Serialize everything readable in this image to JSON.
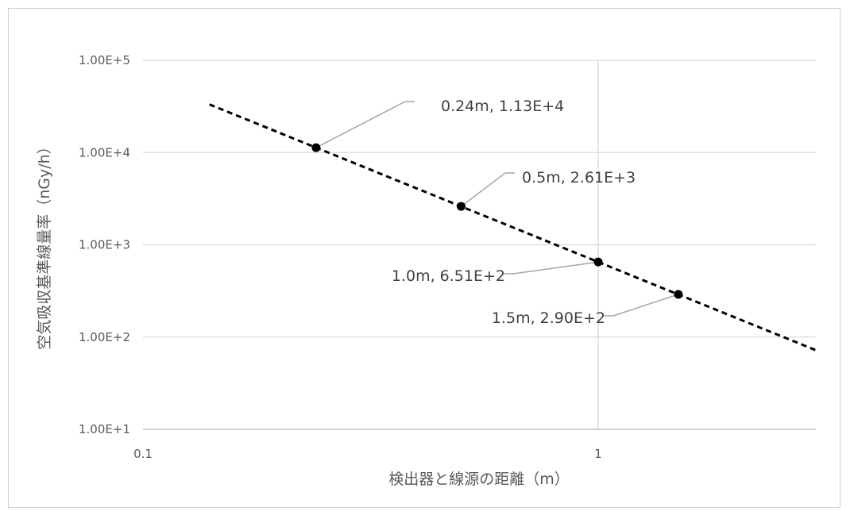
{
  "chart_data": {
    "type": "scatter",
    "xlabel": "検出器と線源の距離（m）",
    "ylabel": "空気吸収基準線量率（nGy/h）",
    "x_scale": "log",
    "y_scale": "log",
    "xlim": [
      0.1,
      3
    ],
    "ylim": [
      10,
      100000
    ],
    "x_ticks": [
      "0.1",
      "1"
    ],
    "y_ticks": [
      "1.00E+1",
      "1.00E+2",
      "1.00E+3",
      "1.00E+4",
      "1.00E+5"
    ],
    "grid": true,
    "points": [
      {
        "x": 0.24,
        "y": 11300,
        "label": "0.24m, 1.13E+4"
      },
      {
        "x": 0.5,
        "y": 2610,
        "label": "0.5m, 2.61E+3"
      },
      {
        "x": 1.0,
        "y": 651,
        "label": "1.0m, 6.51E+2"
      },
      {
        "x": 1.5,
        "y": 290,
        "label": "1.5m, 2.90E+2"
      }
    ],
    "trendline": {
      "style": "dashed",
      "x_range": [
        0.14,
        3
      ],
      "exponent": -2,
      "coefficient": 651
    }
  }
}
